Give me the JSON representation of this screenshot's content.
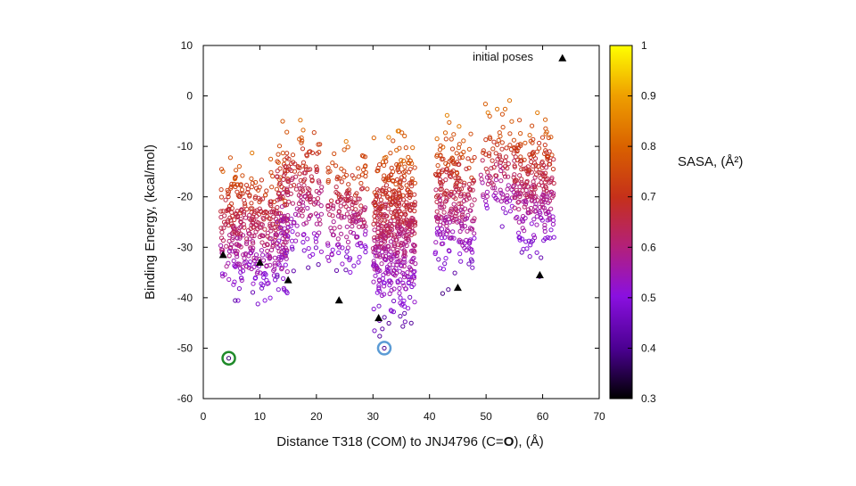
{
  "chart_data": {
    "type": "scatter",
    "xlabel": "Distance T318 (COM) to JNJ4796 (C=O), (Å)",
    "xlabel_parts": {
      "pre": "Distance T318 (COM) to JNJ4796 (C=",
      "bold": "O",
      "post": "), (Å)"
    },
    "ylabel": "Binding Energy, (kcal/mol)",
    "xlim": [
      0,
      70
    ],
    "ylim": [
      -60,
      10
    ],
    "xticks": [
      0,
      10,
      20,
      30,
      40,
      50,
      60,
      70
    ],
    "yticks": [
      10,
      0,
      -10,
      -20,
      -30,
      -40,
      -50,
      -60
    ],
    "grid": false,
    "legend": {
      "position": "top-right",
      "label": "initial poses"
    },
    "colorbar": {
      "label": "SASA, (Å²)",
      "range": [
        0.3,
        1
      ],
      "ticks": [
        1,
        0.9,
        0.8,
        0.7,
        0.6,
        0.5,
        0.4,
        0.3
      ],
      "colormap": "gnuplot-pm3d (black-purple-red-orange-yellow)"
    },
    "series": [
      {
        "name": "initial poses",
        "marker": "triangle",
        "color": "#000000",
        "points": [
          {
            "x": 3.5,
            "y": -31.5
          },
          {
            "x": 10,
            "y": -33
          },
          {
            "x": 15,
            "y": -36.5
          },
          {
            "x": 24,
            "y": -40.5
          },
          {
            "x": 31,
            "y": -44
          },
          {
            "x": 45,
            "y": -38
          },
          {
            "x": 59.5,
            "y": -35.5
          },
          {
            "x": 63.5,
            "y": 7.5
          }
        ]
      },
      {
        "marker": "open-circle",
        "color_by": "SASA",
        "clusters": [
          {
            "x_min": 3,
            "x_max": 15,
            "y_top": -7,
            "y_bottom": -46,
            "count": 420
          },
          {
            "x_min": 13,
            "x_max": 21,
            "y_top": 0,
            "y_bottom": -39,
            "count": 200
          },
          {
            "x_min": 22,
            "x_max": 29,
            "y_top": -5,
            "y_bottom": -40,
            "count": 170
          },
          {
            "x_min": 30,
            "x_max": 37.5,
            "y_top": -3,
            "y_bottom": -50,
            "count": 520
          },
          {
            "x_min": 41,
            "x_max": 48,
            "y_top": -2,
            "y_bottom": -40,
            "count": 260
          },
          {
            "x_min": 49,
            "x_max": 55,
            "y_top": 0,
            "y_bottom": -30,
            "count": 110
          },
          {
            "x_min": 55,
            "x_max": 62,
            "y_top": 0.5,
            "y_bottom": -37,
            "count": 260
          }
        ],
        "highlighted": [
          {
            "x": 4.5,
            "y": -52,
            "sasa": 0.38,
            "ring_color": "#1f8a2a"
          },
          {
            "x": 32,
            "y": -50,
            "sasa": 0.4,
            "ring_color": "#5b9bd5"
          }
        ]
      }
    ]
  }
}
